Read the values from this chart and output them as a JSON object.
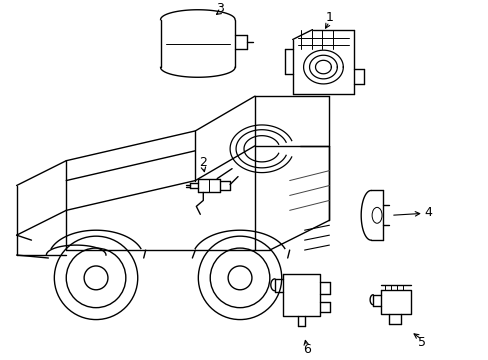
{
  "background_color": "#ffffff",
  "line_color": "#000000",
  "line_width": 1.0,
  "figure_width": 4.89,
  "figure_height": 3.6,
  "dpi": 100,
  "label_fontsize": 9
}
